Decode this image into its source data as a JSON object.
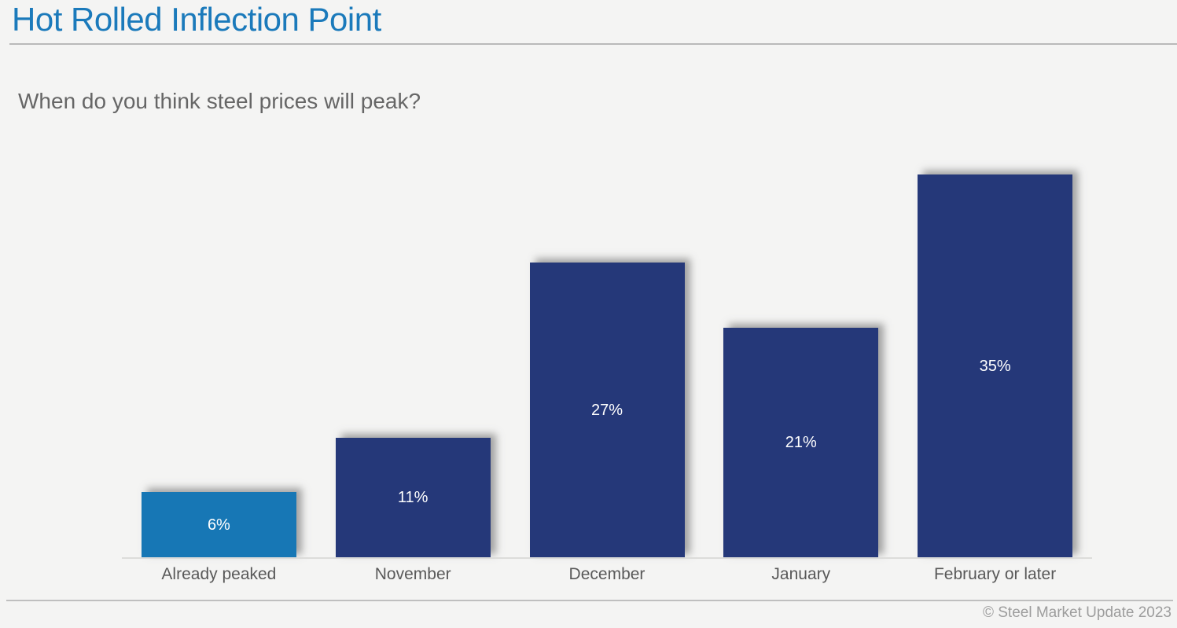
{
  "page": {
    "title": "Hot Rolled Inflection Point",
    "subtitle": "When do you think steel prices will peak?",
    "footer": "© Steel Market Update 2023"
  },
  "colors": {
    "title_text": "#1B7ABB",
    "subtitle_text": "#666666",
    "category_label_text": "#595959",
    "data_label_text": "#FFFFFF",
    "highlight_bar": "#1777B5",
    "default_bar": "#253879",
    "background": "#F4F4F3",
    "axis_line": "#DCDCDA",
    "divider_line": "#B9B9B9",
    "footer_text": "#9D9D9D"
  },
  "chart_data": {
    "type": "bar",
    "title": "Hot Rolled Inflection Point",
    "subtitle": "When do you think steel prices will peak?",
    "categories": [
      "Already peaked",
      "November",
      "December",
      "January",
      "February or later"
    ],
    "values": [
      6,
      11,
      27,
      21,
      35
    ],
    "data_labels": [
      "6%",
      "11%",
      "27%",
      "21%",
      "35%"
    ],
    "bar_colors": [
      "#1777B5",
      "#253879",
      "#253879",
      "#253879",
      "#253879"
    ],
    "xlabel": "",
    "ylabel": "",
    "ylim": [
      0,
      35
    ],
    "grid": false,
    "legend": false,
    "data_label_position": "center-inside",
    "footer": "© Steel Market Update 2023"
  }
}
